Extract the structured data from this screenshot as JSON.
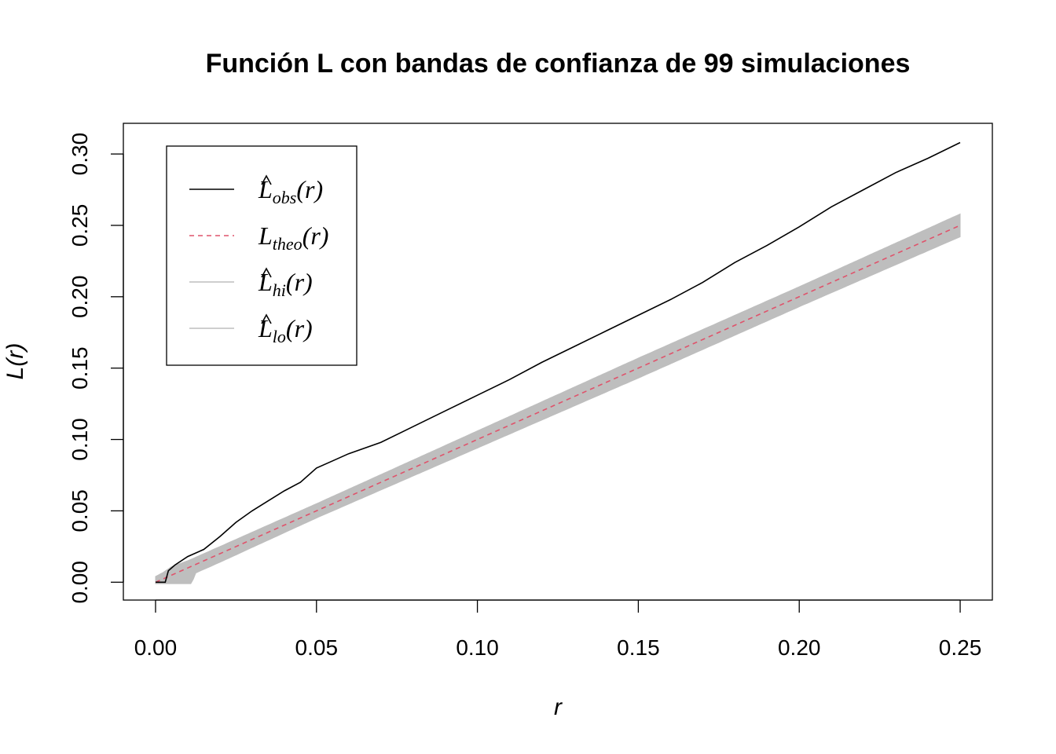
{
  "chart_data": {
    "type": "line",
    "title": "Función L con bandas de confianza de 99 simulaciones",
    "xlabel": "r",
    "ylabel": "L(r)",
    "xlim": [
      -0.01,
      0.26
    ],
    "ylim": [
      -0.0125,
      0.3215
    ],
    "x_ticks": [
      "0.00",
      "0.05",
      "0.10",
      "0.15",
      "0.20",
      "0.25"
    ],
    "y_ticks": [
      "0.00",
      "0.05",
      "0.10",
      "0.15",
      "0.20",
      "0.25",
      "0.30"
    ],
    "legend_position": "top-left",
    "legend": [
      {
        "base": "L",
        "hat": true,
        "sub": "obs",
        "arg": "(r)",
        "style": "solid",
        "color": "#000000"
      },
      {
        "base": "L",
        "hat": false,
        "sub": "theo",
        "arg": "(r)",
        "style": "dashed",
        "color": "#DF536B"
      },
      {
        "base": "L",
        "hat": true,
        "sub": "hi",
        "arg": "(r)",
        "style": "solid",
        "color": "#BEBEBE"
      },
      {
        "base": "L",
        "hat": true,
        "sub": "lo",
        "arg": "(r)",
        "style": "solid",
        "color": "#BEBEBE"
      }
    ],
    "series": [
      {
        "name": "obs",
        "color": "#000000",
        "style": "solid",
        "x": [
          0.0,
          0.003,
          0.004,
          0.006,
          0.01,
          0.015,
          0.02,
          0.025,
          0.03,
          0.035,
          0.04,
          0.045,
          0.05,
          0.055,
          0.06,
          0.07,
          0.08,
          0.09,
          0.1,
          0.11,
          0.12,
          0.13,
          0.14,
          0.15,
          0.16,
          0.17,
          0.18,
          0.19,
          0.2,
          0.21,
          0.22,
          0.23,
          0.24,
          0.25
        ],
        "y": [
          0.0,
          0.0,
          0.008,
          0.012,
          0.018,
          0.023,
          0.032,
          0.042,
          0.05,
          0.057,
          0.064,
          0.07,
          0.08,
          0.085,
          0.09,
          0.098,
          0.109,
          0.12,
          0.131,
          0.142,
          0.154,
          0.165,
          0.176,
          0.187,
          0.198,
          0.21,
          0.224,
          0.236,
          0.249,
          0.263,
          0.275,
          0.287,
          0.297,
          0.308
        ]
      },
      {
        "name": "theo",
        "color": "#DF536B",
        "style": "dashed",
        "x": [
          0.0,
          0.25
        ],
        "y": [
          0.0,
          0.25
        ]
      },
      {
        "name": "hi",
        "color": "#BEBEBE",
        "x": [
          0.0,
          0.0025,
          0.005,
          0.01,
          0.02,
          0.05,
          0.1,
          0.15,
          0.2,
          0.25
        ],
        "y": [
          0.004,
          0.007,
          0.011,
          0.015,
          0.025,
          0.055,
          0.106,
          0.157,
          0.207,
          0.258
        ]
      },
      {
        "name": "lo",
        "color": "#BEBEBE",
        "x": [
          0.0,
          0.005,
          0.0115,
          0.012,
          0.02,
          0.05,
          0.1,
          0.15,
          0.2,
          0.25
        ],
        "y": [
          -0.001,
          -0.001,
          -0.001,
          0.006,
          0.014,
          0.045,
          0.094,
          0.143,
          0.193,
          0.242
        ]
      }
    ]
  }
}
